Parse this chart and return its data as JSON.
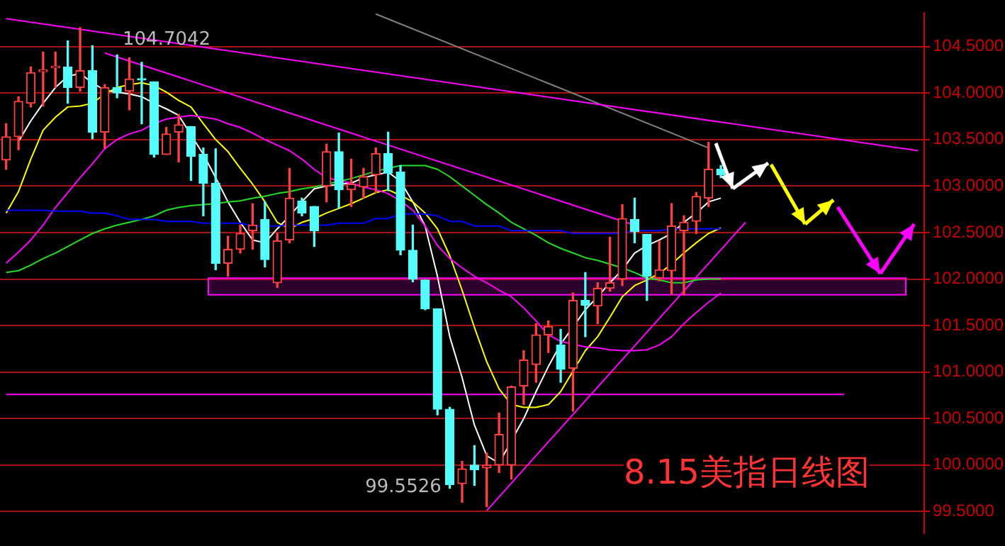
{
  "chart_data": {
    "type": "candlestick",
    "title": "8.15美指日线图",
    "categories": [
      null,
      null,
      null,
      null,
      null,
      null,
      null,
      null,
      null,
      null,
      null,
      null,
      null,
      null,
      null,
      null,
      null,
      null,
      null,
      null,
      null,
      null,
      null,
      null,
      null,
      null,
      null,
      null,
      null,
      null,
      null,
      null,
      null,
      null,
      null,
      null,
      null,
      null,
      null,
      null,
      null,
      null,
      null,
      null,
      null,
      null,
      null,
      null,
      null,
      null,
      null,
      null,
      null,
      null,
      null,
      null,
      null,
      null,
      null,
      null,
      null,
      null,
      null,
      null,
      null,
      null,
      null,
      null,
      null,
      null,
      null,
      null,
      null,
      null,
      null
    ],
    "series": [
      {
        "type": "line",
        "color": "#0000ff",
        "values": [
          102.74,
          102.74,
          102.74,
          102.74,
          102.73,
          102.73,
          102.73,
          102.71,
          102.71,
          102.68,
          102.64,
          102.64,
          102.64,
          102.62,
          102.62,
          102.62,
          102.6,
          102.6,
          102.6,
          102.6,
          102.57,
          102.57,
          102.57,
          102.58,
          102.58,
          102.58,
          102.58,
          102.6,
          102.6,
          102.6,
          102.65,
          102.65,
          102.7,
          102.7,
          102.7,
          102.68,
          102.62,
          102.62,
          102.57,
          102.57,
          102.57,
          102.52,
          102.52,
          102.52,
          102.52,
          102.52,
          102.49,
          102.49,
          102.49,
          102.49,
          102.49,
          102.52,
          102.52,
          102.52,
          102.54,
          102.54,
          102.54,
          102.54,
          102.54,
          null,
          null,
          null,
          null,
          null,
          null,
          null,
          null,
          null,
          null,
          null,
          null,
          null,
          null,
          null,
          null
        ]
      },
      {
        "type": "line",
        "color": "#22dd22",
        "values": [
          102.07,
          102.09,
          102.15,
          102.22,
          102.28,
          102.35,
          102.42,
          102.49,
          102.54,
          102.58,
          102.61,
          102.64,
          102.68,
          102.74,
          102.77,
          102.79,
          102.8,
          102.81,
          102.83,
          102.84,
          102.87,
          102.89,
          102.92,
          102.94,
          102.97,
          102.99,
          103.02,
          103.05,
          103.08,
          103.12,
          103.16,
          103.19,
          103.22,
          103.22,
          103.22,
          103.18,
          103.1,
          103.0,
          102.9,
          102.8,
          102.71,
          102.61,
          102.54,
          102.47,
          102.39,
          102.33,
          102.28,
          102.23,
          102.2,
          102.16,
          102.12,
          102.07,
          102.01,
          101.99,
          101.96,
          101.96,
          101.99,
          102.0,
          102.0,
          null,
          null,
          null,
          null,
          null,
          null,
          null,
          null,
          null,
          null,
          null,
          null,
          null,
          null,
          null,
          null
        ]
      },
      {
        "type": "line",
        "color": "#ff00ff",
        "values": [
          102.17,
          102.29,
          102.42,
          102.58,
          102.77,
          102.93,
          103.09,
          103.24,
          103.4,
          103.5,
          103.56,
          103.6,
          103.67,
          103.72,
          103.74,
          103.76,
          103.74,
          103.72,
          103.67,
          103.63,
          103.57,
          103.5,
          103.44,
          103.38,
          103.29,
          103.18,
          103.09,
          103.06,
          103.03,
          102.99,
          102.96,
          102.92,
          102.84,
          102.74,
          102.57,
          102.36,
          102.22,
          102.12,
          102.03,
          101.96,
          101.88,
          101.81,
          101.69,
          101.55,
          101.4,
          101.33,
          101.3,
          101.27,
          101.26,
          101.24,
          101.23,
          101.23,
          101.24,
          101.29,
          101.38,
          101.52,
          101.64,
          101.75,
          101.85,
          null,
          null,
          null,
          null,
          null,
          null,
          null,
          null,
          null,
          null,
          null,
          null,
          null,
          null,
          null,
          null
        ]
      },
      {
        "type": "line",
        "color": "#ffff00",
        "values": [
          102.71,
          102.94,
          103.29,
          103.6,
          103.74,
          103.85,
          103.86,
          103.89,
          103.99,
          104.06,
          104.09,
          104.11,
          104.08,
          104.01,
          103.92,
          103.85,
          103.67,
          103.5,
          103.37,
          103.19,
          103.02,
          102.83,
          102.61,
          102.54,
          102.61,
          102.65,
          102.71,
          102.76,
          102.81,
          102.87,
          102.93,
          102.96,
          102.9,
          102.83,
          102.71,
          102.54,
          102.25,
          101.88,
          101.48,
          101.11,
          100.82,
          100.65,
          100.62,
          100.62,
          100.65,
          100.79,
          101.01,
          101.23,
          101.38,
          101.59,
          101.81,
          101.93,
          101.99,
          102.06,
          102.16,
          102.28,
          102.39,
          102.49,
          102.55,
          null,
          null,
          null,
          null,
          null,
          null,
          null,
          null,
          null,
          null,
          null,
          null,
          null,
          null,
          null,
          null
        ]
      },
      {
        "type": "line",
        "color": "#ffffff",
        "values": [
          null,
          103.48,
          103.7,
          103.89,
          104.06,
          104.18,
          104.21,
          104.11,
          104.03,
          104.01,
          103.99,
          103.96,
          103.89,
          103.83,
          103.76,
          null,
          103.34,
          103.09,
          102.83,
          102.61,
          102.42,
          102.39,
          102.54,
          102.68,
          102.83,
          102.97,
          103.0,
          103.02,
          103.03,
          103.09,
          103.12,
          103.15,
          103.05,
          102.83,
          102.57,
          102.03,
          101.38,
          100.94,
          100.43,
          100.1,
          100.02,
          null,
          100.5,
          100.79,
          101.06,
          101.3,
          null,
          101.67,
          101.81,
          101.96,
          102.1,
          102.28,
          102.36,
          102.42,
          102.49,
          102.61,
          102.71,
          102.83,
          102.87,
          null,
          null,
          null,
          null,
          null,
          null,
          null,
          null,
          null,
          null,
          null,
          null,
          null,
          null,
          null,
          null
        ]
      },
      {
        "type": "line",
        "color": "#ff00ff",
        "values": [
          104.8,
          null,
          null,
          null,
          null,
          null,
          null,
          null,
          null,
          null,
          null,
          null,
          null,
          null,
          null,
          null,
          null,
          null,
          null,
          null,
          null,
          null,
          null,
          null,
          null,
          null,
          null,
          null,
          null,
          null,
          null,
          null,
          null,
          null,
          null,
          null,
          null,
          null,
          null,
          null,
          null,
          null,
          null,
          null,
          null,
          null,
          null,
          null,
          null,
          null,
          null,
          null,
          null,
          null,
          null,
          null,
          null,
          null,
          null,
          null,
          null,
          null,
          null,
          null,
          null,
          null,
          null,
          null,
          null,
          null,
          null,
          null,
          null,
          null,
          103.38
        ]
      },
      {
        "type": "line",
        "color": "#808080",
        "values": [
          null,
          null,
          null,
          null,
          null,
          null,
          null,
          null,
          null,
          null,
          null,
          null,
          null,
          null,
          null,
          null,
          null,
          null,
          null,
          null,
          null,
          null,
          null,
          null,
          null,
          null,
          null,
          null,
          null,
          null,
          104.85,
          null,
          null,
          null,
          null,
          null,
          null,
          null,
          null,
          null,
          null,
          null,
          null,
          null,
          null,
          null,
          null,
          null,
          null,
          null,
          null,
          null,
          null,
          null,
          null,
          null,
          null,
          103.41,
          null,
          null,
          null,
          null,
          null,
          null,
          null,
          null,
          null,
          null,
          null,
          null,
          null,
          null,
          null,
          null,
          null
        ]
      },
      {
        "type": "line",
        "color": "#ff00ff",
        "values": [
          null,
          null,
          null,
          null,
          null,
          null,
          null,
          null,
          104.43,
          null,
          null,
          null,
          null,
          null,
          null,
          null,
          null,
          null,
          null,
          null,
          null,
          null,
          null,
          null,
          null,
          null,
          null,
          null,
          null,
          null,
          null,
          null,
          null,
          null,
          null,
          null,
          null,
          null,
          null,
          null,
          null,
          null,
          null,
          null,
          null,
          null,
          null,
          null,
          null,
          null,
          null,
          102.58,
          null,
          null,
          null,
          null,
          null,
          null,
          null,
          null,
          null,
          null,
          null,
          null,
          null,
          null,
          null,
          null,
          null,
          null,
          null,
          null,
          null,
          null,
          null
        ]
      },
      {
        "type": "line",
        "color": "#ff00ff",
        "values": [
          null,
          null,
          null,
          null,
          null,
          null,
          null,
          null,
          null,
          null,
          null,
          null,
          null,
          null,
          null,
          null,
          null,
          null,
          null,
          null,
          null,
          null,
          null,
          null,
          null,
          null,
          null,
          null,
          null,
          null,
          null,
          null,
          null,
          null,
          null,
          null,
          null,
          null,
          null,
          99.51,
          null,
          null,
          null,
          null,
          null,
          null,
          null,
          null,
          null,
          null,
          null,
          null,
          null,
          null,
          null,
          null,
          null,
          null,
          null,
          null,
          102.61,
          null,
          null,
          null,
          null,
          null,
          null,
          null,
          null,
          null,
          null,
          null,
          null,
          null,
          null
        ]
      },
      {
        "type": "line",
        "color": "#ff00ff",
        "values": [
          100.76,
          null,
          null,
          null,
          null,
          null,
          null,
          null,
          null,
          null,
          null,
          null,
          null,
          null,
          null,
          null,
          null,
          null,
          null,
          null,
          null,
          null,
          null,
          null,
          null,
          null,
          null,
          null,
          null,
          null,
          null,
          null,
          null,
          null,
          null,
          null,
          null,
          null,
          null,
          null,
          null,
          null,
          null,
          null,
          null,
          null,
          null,
          null,
          null,
          null,
          null,
          null,
          null,
          null,
          null,
          null,
          null,
          null,
          null,
          null,
          null,
          null,
          null,
          null,
          null,
          null,
          null,
          null,
          100.76,
          null,
          null,
          null,
          null,
          null,
          null
        ]
      },
      {
        "ohlc": [
          [
            103.28,
            103.67,
            103.18,
            103.53
          ],
          [
            103.53,
            103.96,
            103.39,
            103.91
          ],
          [
            103.89,
            104.28,
            103.85,
            104.22
          ],
          [
            104.23,
            104.44,
            103.86,
            104.25
          ],
          [
            104.27,
            104.44,
            104.06,
            104.29
          ],
          [
            104.28,
            104.56,
            103.89,
            104.06
          ],
          [
            104.06,
            104.7042,
            104.02,
            104.24
          ],
          [
            104.24,
            104.51,
            103.51,
            103.58
          ],
          [
            103.58,
            104.09,
            103.41,
            104.06
          ],
          [
            104.06,
            104.41,
            103.95,
            104.0
          ],
          [
            104.02,
            104.38,
            103.82,
            104.15
          ],
          [
            104.15,
            104.33,
            103.67,
            104.14
          ],
          [
            104.12,
            104.12,
            103.31,
            103.34
          ],
          [
            103.34,
            103.63,
            103.34,
            103.56
          ],
          [
            103.58,
            103.77,
            103.26,
            103.66
          ],
          [
            103.64,
            103.64,
            103.06,
            103.32
          ],
          [
            103.34,
            103.41,
            102.68,
            103.03
          ],
          [
            103.03,
            103.4,
            102.1,
            102.17
          ],
          [
            102.17,
            102.46,
            102.03,
            102.32
          ],
          [
            102.32,
            102.58,
            102.28,
            102.49
          ],
          [
            102.52,
            102.81,
            102.32,
            102.58
          ],
          [
            102.64,
            102.83,
            102.13,
            102.21
          ],
          [
            101.96,
            102.49,
            101.91,
            102.41
          ],
          [
            102.42,
            103.19,
            102.39,
            102.87
          ],
          [
            102.84,
            102.87,
            102.68,
            102.71
          ],
          [
            102.78,
            102.78,
            102.35,
            102.52
          ],
          [
            103.0,
            103.45,
            102.83,
            103.37
          ],
          [
            103.37,
            103.57,
            102.76,
            102.96
          ],
          [
            102.96,
            103.29,
            102.78,
            103.02
          ],
          [
            102.99,
            103.19,
            102.87,
            103.1
          ],
          [
            103.12,
            103.41,
            102.93,
            103.35
          ],
          [
            103.35,
            103.58,
            102.95,
            103.14
          ],
          [
            103.15,
            103.22,
            102.26,
            102.31
          ],
          [
            102.31,
            102.58,
            101.97,
            102.0
          ],
          [
            101.99,
            101.99,
            101.67,
            101.68
          ],
          [
            101.68,
            101.68,
            100.54,
            100.6
          ],
          [
            100.6,
            100.62,
            99.75,
            99.79
          ],
          [
            99.8,
            100.04,
            99.6,
            99.96
          ],
          [
            100.0,
            100.21,
            99.78,
            99.95
          ],
          [
            99.97,
            100.13,
            99.5526,
            100.0
          ],
          [
            100.0,
            100.56,
            99.92,
            100.33
          ],
          [
            100.0,
            100.85,
            99.85,
            100.84
          ],
          [
            100.85,
            101.23,
            100.65,
            101.13
          ],
          [
            101.08,
            101.52,
            100.89,
            101.4
          ],
          [
            101.4,
            101.55,
            101.21,
            101.49
          ],
          [
            101.29,
            101.46,
            100.89,
            101.03
          ],
          [
            101.04,
            101.85,
            100.58,
            101.77
          ],
          [
            101.77,
            102.07,
            101.38,
            101.72
          ],
          [
            101.71,
            101.96,
            101.52,
            101.9
          ],
          [
            101.9,
            102.45,
            101.87,
            101.96
          ],
          [
            102.0,
            102.8,
            101.93,
            102.65
          ],
          [
            102.64,
            102.87,
            102.39,
            102.51
          ],
          [
            102.48,
            102.48,
            101.77,
            102.03
          ],
          [
            102.01,
            102.41,
            101.98,
            102.1
          ],
          [
            102.09,
            102.81,
            101.84,
            102.57
          ],
          [
            102.52,
            102.68,
            101.83,
            102.61
          ],
          [
            102.62,
            102.93,
            102.49,
            102.89
          ],
          [
            102.87,
            103.47,
            102.78,
            103.18
          ],
          [
            103.18,
            103.22,
            103.09,
            103.12
          ],
          null,
          null,
          null,
          null,
          null,
          null,
          null,
          null,
          null,
          null,
          null,
          null,
          null,
          null,
          null,
          null
        ],
        "colors": [
          "#ff4040",
          "#ff4040",
          "#ff4040",
          "#ff4040",
          "#ff4040",
          "#54fcfc",
          "#ff4040",
          "#54fcfc",
          "#ff4040",
          "#54fcfc",
          "#ff4040",
          "#54fcfc",
          "#54fcfc",
          "#ff4040",
          "#ff4040",
          "#54fcfc",
          "#54fcfc",
          "#54fcfc",
          "#ff4040",
          "#ff4040",
          "#ff4040",
          "#54fcfc",
          "#ff4040",
          "#ff4040",
          "#54fcfc",
          "#54fcfc",
          "#ff4040",
          "#54fcfc",
          "#ff4040",
          "#ff4040",
          "#ff4040",
          "#54fcfc",
          "#54fcfc",
          "#54fcfc",
          "#54fcfc",
          "#54fcfc",
          "#54fcfc",
          "#ff4040",
          "#54fcfc",
          "#ff4040",
          "#ff4040",
          "#ff4040",
          "#ff4040",
          "#ff4040",
          "#ff4040",
          "#54fcfc",
          "#ff4040",
          "#54fcfc",
          "#ff4040",
          "#ff4040",
          "#ff4040",
          "#54fcfc",
          "#54fcfc",
          "#ff4040",
          "#ff4040",
          "#ff4040",
          "#ff4040",
          "#ff4040",
          "#54fcfc",
          null,
          null,
          null,
          null,
          null,
          null,
          null,
          null,
          null,
          null,
          null,
          null,
          null,
          null,
          null,
          null
        ]
      }
    ],
    "ylim": [
      99.27,
      104.86
    ],
    "yticks": [
      {
        "value": 99.5,
        "label": "99.5000"
      },
      {
        "value": 100,
        "label": "100.0000"
      },
      {
        "value": 100.5,
        "label": "100.5000"
      },
      {
        "value": 101,
        "label": "101.0000"
      },
      {
        "value": 101.5,
        "label": "101.5000"
      },
      {
        "value": 102,
        "label": "102.0000"
      },
      {
        "value": 102.5,
        "label": "102.5000"
      },
      {
        "value": 103,
        "label": "103.0000"
      },
      {
        "value": 103.5,
        "label": "103.5000"
      },
      {
        "value": 104,
        "label": "104.0000"
      },
      {
        "value": 104.5,
        "label": "104.5000"
      }
    ],
    "grid": "y",
    "tick_labels": "y",
    "bands": [
      {
        "axis": "y",
        "from": 101.83,
        "to": 102.01,
        "color": "#ff00ff"
      }
    ],
    "annotations": [
      "104.7042",
      "99.5526"
    ]
  }
}
